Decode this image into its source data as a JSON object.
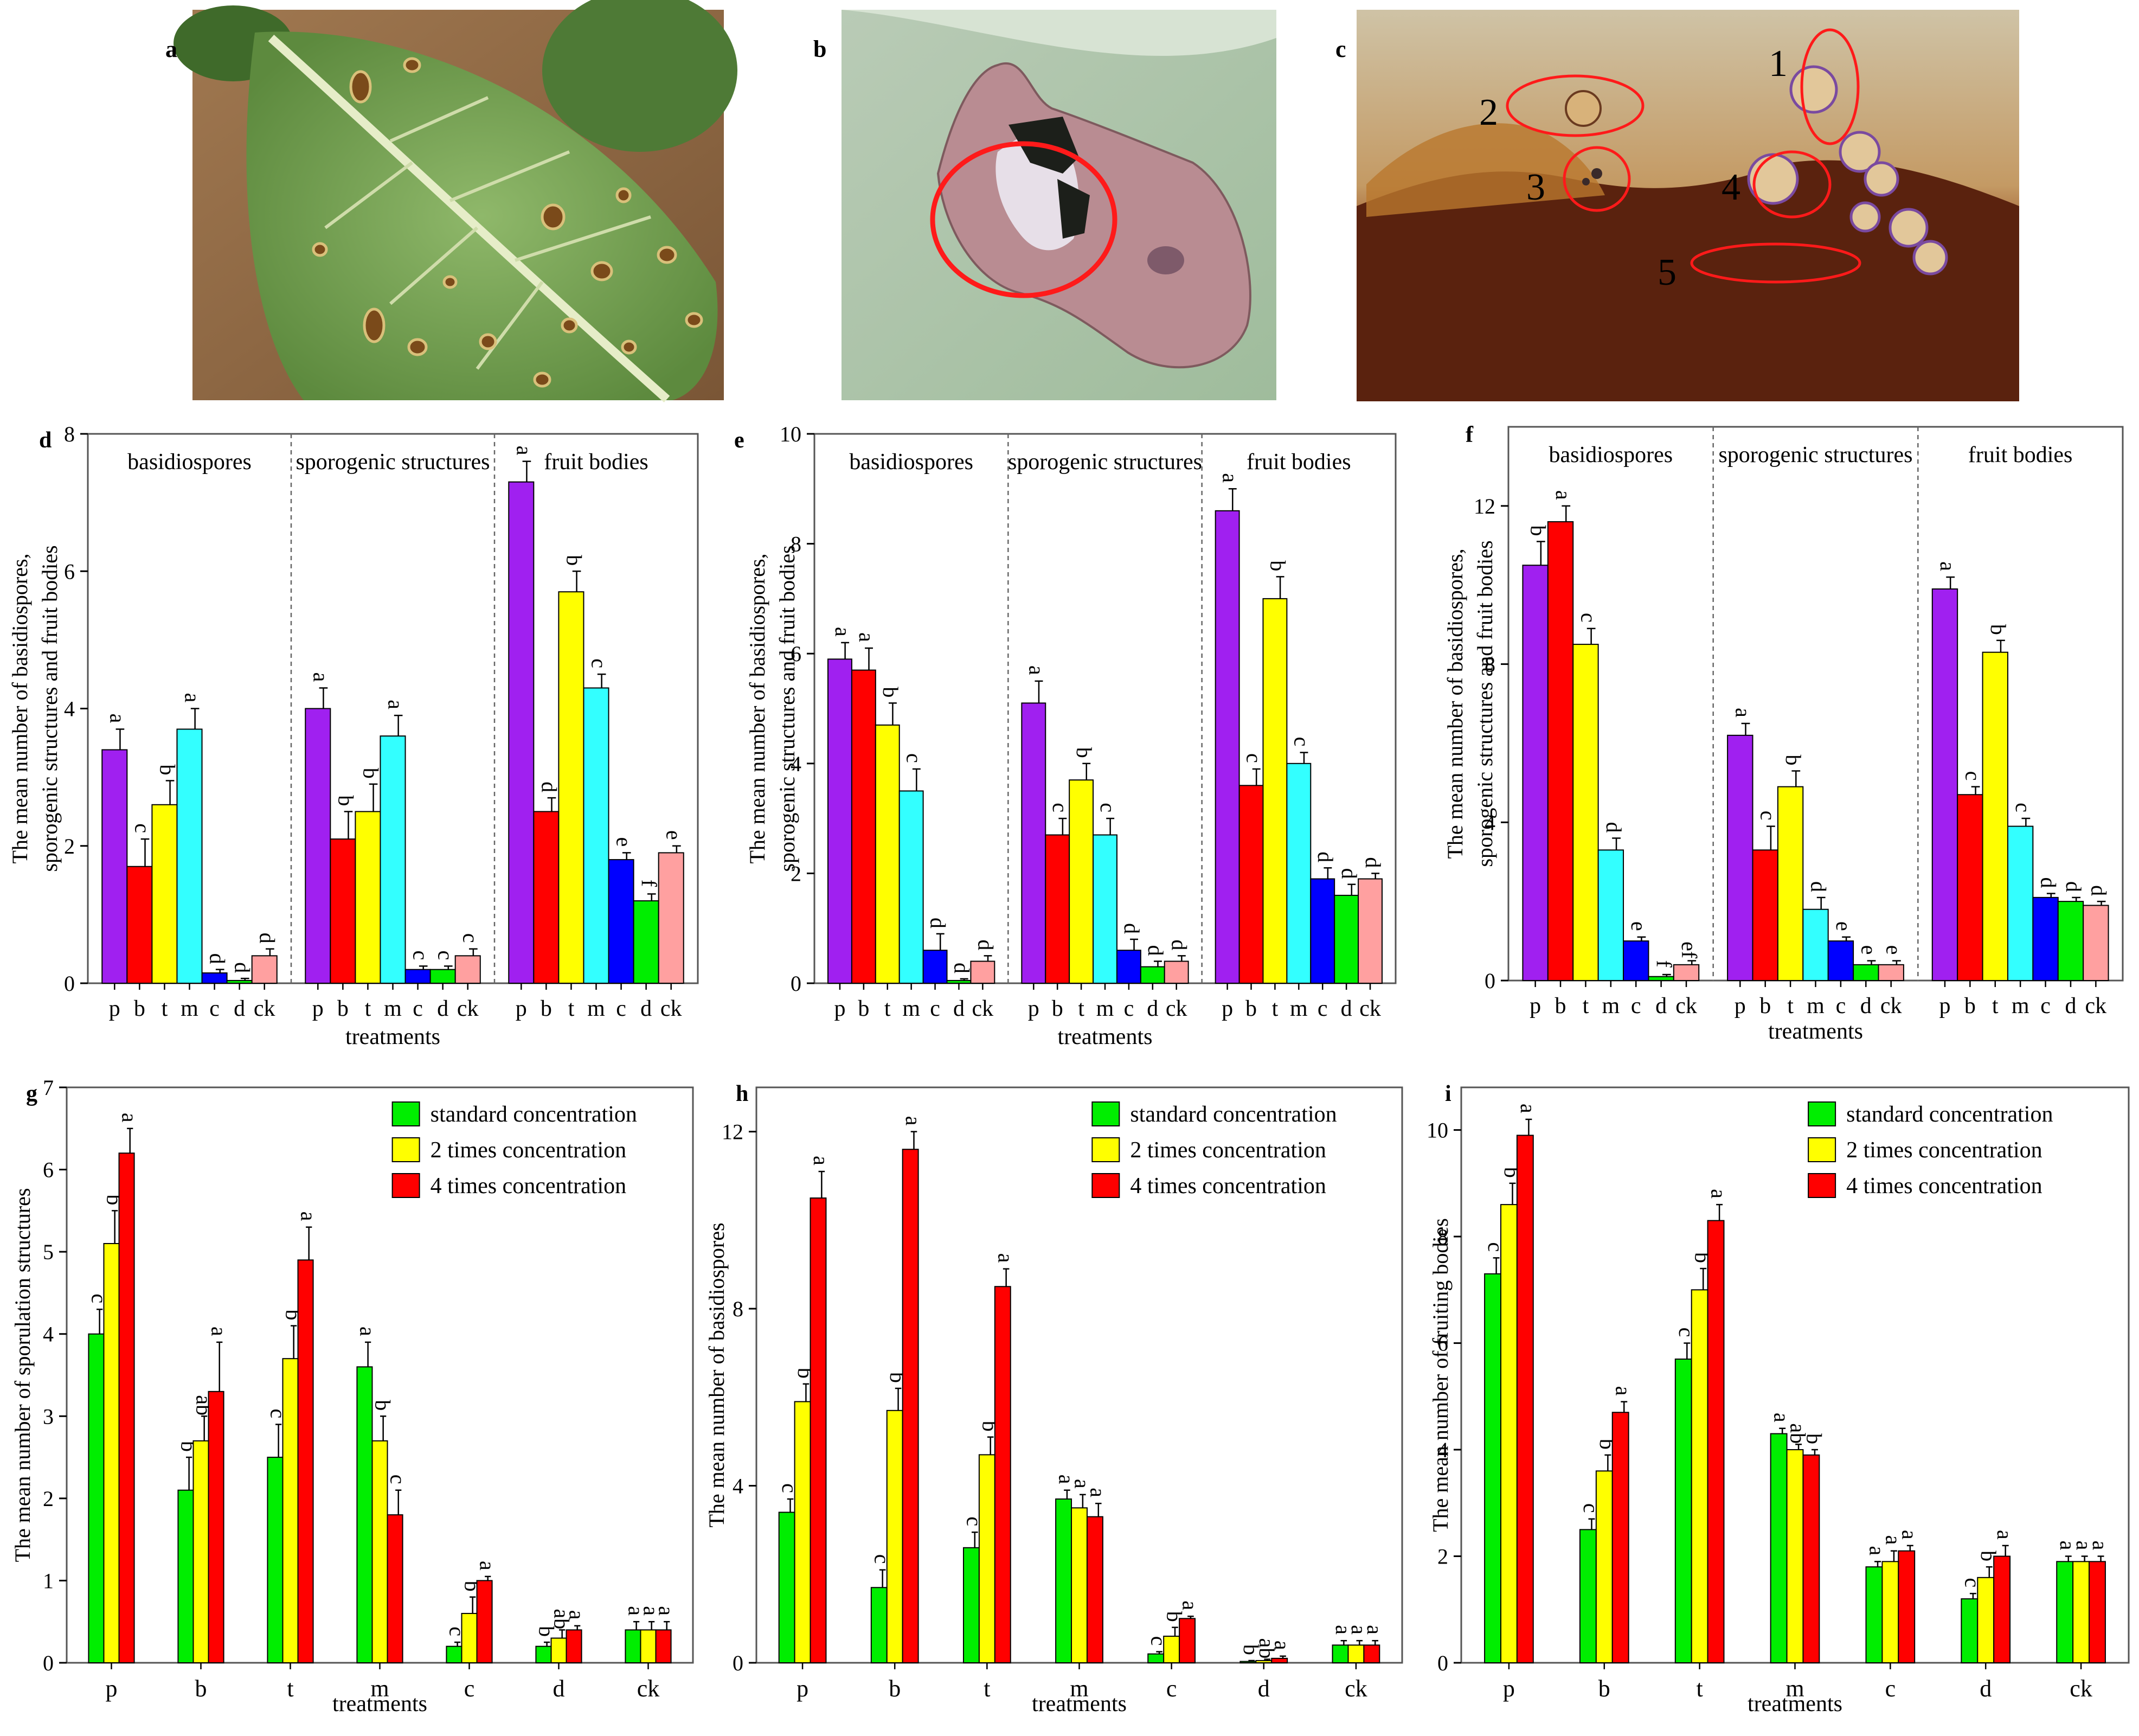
{
  "panel_letters": {
    "a": "a",
    "b": "b",
    "c": "c",
    "d": "d",
    "e": "e",
    "f": "f",
    "g": "g",
    "h": "h",
    "i": "i"
  },
  "photo_c_markers": [
    "1",
    "2",
    "3",
    "4",
    "5"
  ],
  "colors": {
    "p": "#a020f0",
    "b": "#ff0000",
    "t": "#ffff00",
    "m": "#33ffff",
    "c": "#0000ff",
    "d": "#00ee00",
    "ck": "#ffa0a0",
    "standard": "#00ee00",
    "double": "#ffff00",
    "quadruple": "#ff0000",
    "marker": "#ff1a1a"
  },
  "chart_data": [
    {
      "id": "d",
      "type": "bar",
      "panel": "d",
      "ylabel": [
        "The mean number of basidiospores,",
        "sporogenic structures and fruit bodies"
      ],
      "xlabel": "treatments",
      "ylim": [
        0,
        8
      ],
      "yticks": [
        0,
        2,
        4,
        6,
        8
      ],
      "groups": [
        "basidiospores",
        "sporogenic structures",
        "fruit bodies"
      ],
      "categories": [
        "p",
        "b",
        "t",
        "m",
        "c",
        "d",
        "ck"
      ],
      "values": [
        [
          3.4,
          1.7,
          2.6,
          3.7,
          0.15,
          0.04,
          0.4
        ],
        [
          4.0,
          2.1,
          2.5,
          3.6,
          0.2,
          0.2,
          0.4
        ],
        [
          7.3,
          2.5,
          5.7,
          4.3,
          1.8,
          1.2,
          1.9
        ]
      ],
      "errors": [
        [
          0.3,
          0.4,
          0.35,
          0.3,
          0.05,
          0.03,
          0.1
        ],
        [
          0.3,
          0.4,
          0.4,
          0.3,
          0.05,
          0.05,
          0.1
        ],
        [
          0.3,
          0.2,
          0.3,
          0.2,
          0.1,
          0.1,
          0.1
        ]
      ],
      "letters": [
        [
          "a",
          "c",
          "b",
          "a",
          "d",
          "d",
          "d"
        ],
        [
          "a",
          "b",
          "b",
          "a",
          "c",
          "c",
          "c"
        ],
        [
          "a",
          "d",
          "b",
          "c",
          "e",
          "f",
          "e"
        ]
      ]
    },
    {
      "id": "e",
      "type": "bar",
      "panel": "e",
      "ylabel": [
        "The mean number of basidiospores,",
        "sporogenic structures and fruit bodies"
      ],
      "xlabel": "treatments",
      "ylim": [
        0,
        10
      ],
      "yticks": [
        0,
        2,
        4,
        6,
        8,
        10
      ],
      "groups": [
        "basidiospores",
        "sporogenic structures",
        "fruit bodies"
      ],
      "categories": [
        "p",
        "b",
        "t",
        "m",
        "c",
        "d",
        "ck"
      ],
      "values": [
        [
          5.9,
          5.7,
          4.7,
          3.5,
          0.6,
          0.05,
          0.4
        ],
        [
          5.1,
          2.7,
          3.7,
          2.7,
          0.6,
          0.3,
          0.4
        ],
        [
          8.6,
          3.6,
          7.0,
          4.0,
          1.9,
          1.6,
          1.9
        ]
      ],
      "errors": [
        [
          0.3,
          0.4,
          0.4,
          0.4,
          0.3,
          0.03,
          0.1
        ],
        [
          0.4,
          0.3,
          0.3,
          0.3,
          0.2,
          0.1,
          0.1
        ],
        [
          0.4,
          0.3,
          0.4,
          0.2,
          0.2,
          0.2,
          0.1
        ]
      ],
      "letters": [
        [
          "a",
          "a",
          "b",
          "c",
          "d",
          "d",
          "d"
        ],
        [
          "a",
          "c",
          "b",
          "c",
          "d",
          "d",
          "d"
        ],
        [
          "a",
          "c",
          "b",
          "c",
          "d",
          "d",
          "d"
        ]
      ]
    },
    {
      "id": "f",
      "type": "bar",
      "panel": "f",
      "ylabel": [
        "The mean number of basidiospores,",
        "sporogenic structures and fruit bodies"
      ],
      "xlabel": "treatments",
      "ylim": [
        0,
        14
      ],
      "yticks": [
        0,
        4,
        8,
        12
      ],
      "groups": [
        "basidiospores",
        "sporogenic structures",
        "fruit bodies"
      ],
      "categories": [
        "p",
        "b",
        "t",
        "m",
        "c",
        "d",
        "ck"
      ],
      "values": [
        [
          10.5,
          11.6,
          8.5,
          3.3,
          1.0,
          0.1,
          0.4
        ],
        [
          6.2,
          3.3,
          4.9,
          1.8,
          1.0,
          0.4,
          0.4
        ],
        [
          9.9,
          4.7,
          8.3,
          3.9,
          2.1,
          2.0,
          1.9
        ]
      ],
      "errors": [
        [
          0.6,
          0.4,
          0.4,
          0.3,
          0.1,
          0.05,
          0.1
        ],
        [
          0.3,
          0.6,
          0.4,
          0.3,
          0.1,
          0.1,
          0.1
        ],
        [
          0.3,
          0.2,
          0.3,
          0.2,
          0.1,
          0.1,
          0.1
        ]
      ],
      "letters": [
        [
          "b",
          "a",
          "c",
          "d",
          "e",
          "f",
          "ef"
        ],
        [
          "a",
          "c",
          "b",
          "d",
          "e",
          "e",
          "e"
        ],
        [
          "a",
          "c",
          "b",
          "c",
          "d",
          "d",
          "d"
        ]
      ]
    },
    {
      "id": "g",
      "type": "bar",
      "panel": "g",
      "ylabel": [
        "The mean number of sporulation structures"
      ],
      "xlabel": "treatments",
      "ylim": [
        0,
        7
      ],
      "yticks": [
        0,
        1,
        2,
        3,
        4,
        5,
        6,
        7
      ],
      "categories": [
        "p",
        "b",
        "t",
        "m",
        "c",
        "d",
        "ck"
      ],
      "series": [
        {
          "name": "standard concentration",
          "values": [
            4.0,
            2.1,
            2.5,
            3.6,
            0.2,
            0.2,
            0.4
          ],
          "errors": [
            0.3,
            0.4,
            0.4,
            0.3,
            0.05,
            0.05,
            0.1
          ],
          "letters": [
            "c",
            "b",
            "c",
            "a",
            "c",
            "b",
            "a"
          ]
        },
        {
          "name": "2 times concentration",
          "values": [
            5.1,
            2.7,
            3.7,
            2.7,
            0.6,
            0.3,
            0.4
          ],
          "errors": [
            0.4,
            0.3,
            0.4,
            0.3,
            0.2,
            0.1,
            0.1
          ],
          "letters": [
            "b",
            "ab",
            "b",
            "b",
            "b",
            "ab",
            "a"
          ]
        },
        {
          "name": "4 times concentration",
          "values": [
            6.2,
            3.3,
            4.9,
            1.8,
            1.0,
            0.4,
            0.4
          ],
          "errors": [
            0.3,
            0.6,
            0.4,
            0.3,
            0.05,
            0.05,
            0.1
          ],
          "letters": [
            "a",
            "a",
            "a",
            "c",
            "a",
            "a",
            "a"
          ]
        }
      ]
    },
    {
      "id": "h",
      "type": "bar",
      "panel": "h",
      "ylabel": [
        "The mean number of basidiospores"
      ],
      "xlabel": "treatments",
      "ylim": [
        0,
        13
      ],
      "yticks": [
        0,
        4,
        8,
        12
      ],
      "categories": [
        "p",
        "b",
        "t",
        "m",
        "c",
        "d",
        "ck"
      ],
      "series": [
        {
          "name": "standard concentration",
          "values": [
            3.4,
            1.7,
            2.6,
            3.7,
            0.2,
            0.03,
            0.4
          ],
          "errors": [
            0.3,
            0.4,
            0.35,
            0.2,
            0.05,
            0.02,
            0.1
          ],
          "letters": [
            "c",
            "c",
            "c",
            "a",
            "c",
            "b",
            "a"
          ]
        },
        {
          "name": "2 times concentration",
          "values": [
            5.9,
            5.7,
            4.7,
            3.5,
            0.6,
            0.05,
            0.4
          ],
          "errors": [
            0.4,
            0.5,
            0.4,
            0.3,
            0.2,
            0.03,
            0.1
          ],
          "letters": [
            "b",
            "b",
            "b",
            "a",
            "b",
            "ab",
            "a"
          ]
        },
        {
          "name": "4 times concentration",
          "values": [
            10.5,
            11.6,
            8.5,
            3.3,
            1.0,
            0.1,
            0.4
          ],
          "errors": [
            0.6,
            0.4,
            0.4,
            0.3,
            0.05,
            0.05,
            0.1
          ],
          "letters": [
            "a",
            "a",
            "a",
            "a",
            "a",
            "a",
            "a"
          ]
        }
      ]
    },
    {
      "id": "i",
      "type": "bar",
      "panel": "i",
      "ylabel": [
        "The mean number of fruiting bodies"
      ],
      "xlabel": "treatments",
      "ylim": [
        0,
        10.8
      ],
      "yticks": [
        0,
        2,
        4,
        6,
        8,
        10
      ],
      "categories": [
        "p",
        "b",
        "t",
        "m",
        "c",
        "d",
        "ck"
      ],
      "series": [
        {
          "name": "standard concentration",
          "values": [
            7.3,
            2.5,
            5.7,
            4.3,
            1.8,
            1.2,
            1.9
          ],
          "errors": [
            0.3,
            0.2,
            0.3,
            0.1,
            0.1,
            0.1,
            0.1
          ],
          "letters": [
            "c",
            "c",
            "c",
            "a",
            "a",
            "c",
            "a"
          ]
        },
        {
          "name": "2 times concentration",
          "values": [
            8.6,
            3.6,
            7.0,
            4.0,
            1.9,
            1.6,
            1.9
          ],
          "errors": [
            0.4,
            0.3,
            0.4,
            0.1,
            0.2,
            0.2,
            0.1
          ],
          "letters": [
            "b",
            "b",
            "b",
            "ab",
            "a",
            "b",
            "a"
          ]
        },
        {
          "name": "4 times concentration",
          "values": [
            9.9,
            4.7,
            8.3,
            3.9,
            2.1,
            2.0,
            1.9
          ],
          "errors": [
            0.3,
            0.2,
            0.3,
            0.1,
            0.1,
            0.2,
            0.1
          ],
          "letters": [
            "a",
            "a",
            "a",
            "b",
            "a",
            "a",
            "a"
          ]
        }
      ]
    }
  ]
}
